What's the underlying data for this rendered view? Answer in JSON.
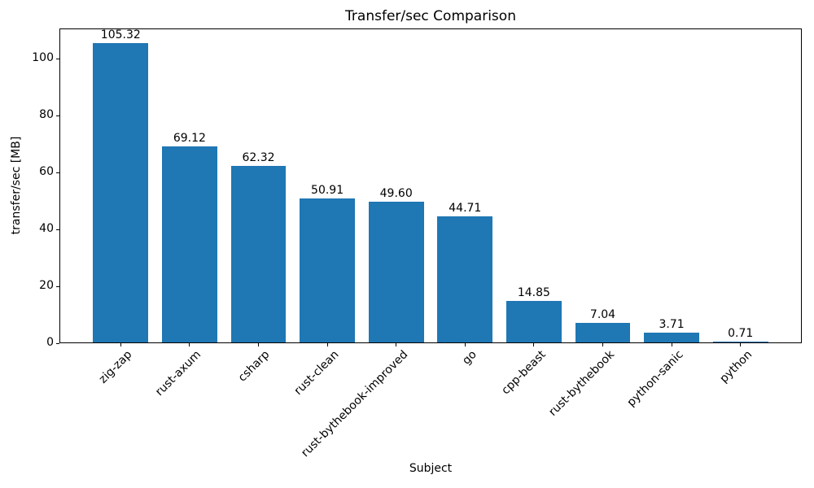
{
  "chart_data": {
    "type": "bar",
    "title": "Transfer/sec Comparison",
    "xlabel": "Subject",
    "ylabel": "transfer/sec [MB]",
    "categories": [
      "zig-zap",
      "rust-axum",
      "csharp",
      "rust-clean",
      "rust-bythebook-improved",
      "go",
      "cpp-beast",
      "rust-bythebook",
      "python-sanic",
      "python"
    ],
    "values": [
      105.32,
      69.12,
      62.32,
      50.91,
      49.6,
      44.71,
      14.85,
      7.04,
      3.71,
      0.71
    ],
    "value_labels": [
      "105.32",
      "69.12",
      "62.32",
      "50.91",
      "49.60",
      "44.71",
      "14.85",
      "7.04",
      "3.71",
      "0.71"
    ],
    "yticks": [
      0,
      20,
      40,
      60,
      80,
      100
    ],
    "ylim": [
      0,
      110.6
    ],
    "x_tick_rotation": 45,
    "grid": false,
    "legend": "none",
    "bar_color": "#1f77b4",
    "axis_color": "#000000",
    "background_color": "#ffffff"
  }
}
